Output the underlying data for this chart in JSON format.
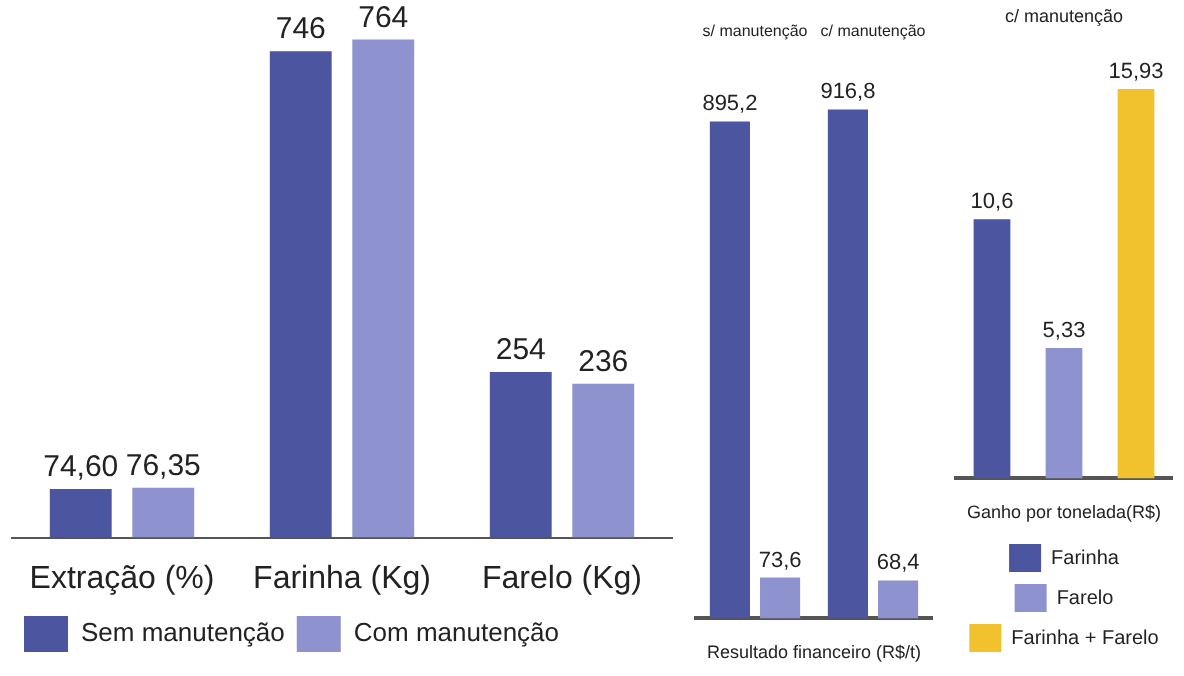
{
  "chart_data": [
    {
      "type": "bar",
      "categories": [
        "Extração (%)",
        "Farinha (Kg)",
        "Farelo (Kg)"
      ],
      "series": [
        {
          "name": "Sem manutenção",
          "color": "#4b55a0",
          "values": [
            74.6,
            746,
            254
          ],
          "value_labels": [
            "74,60",
            "746",
            "254"
          ]
        },
        {
          "name": "Com manutenção",
          "color": "#8e93cf",
          "values": [
            76.35,
            764,
            236
          ],
          "value_labels": [
            "76,35",
            "764",
            "236"
          ]
        }
      ],
      "legend": "bottom left",
      "grid": false
    },
    {
      "type": "bar",
      "categories": [
        "s/ manutenção",
        "c/ manutenção"
      ],
      "xlabel": "Resultado financeiro (R$/t)",
      "series": [
        {
          "color": "#4b55a0",
          "values": [
            895.2,
            916.8
          ],
          "value_labels": [
            "895,2",
            "916,8"
          ]
        },
        {
          "color": "#8e93cf",
          "values": [
            73.6,
            68.4
          ],
          "value_labels": [
            "73,6",
            "68,4"
          ]
        }
      ],
      "legend": false,
      "grid": false
    },
    {
      "type": "bar",
      "categories": [
        null,
        null,
        null
      ],
      "xlabel": "Ganho por tonelada(R$)",
      "annotations": [
        "c/ manutenção"
      ],
      "stacked": true,
      "series": [
        {
          "name": "Farinha",
          "color": "#4b55a0",
          "values": [
            10.6,
            null,
            null
          ],
          "value_labels": [
            "10,6",
            null,
            null
          ]
        },
        {
          "name": "Farelo",
          "color": "#8e93cf",
          "values": [
            null,
            5.33,
            null
          ],
          "value_labels": [
            null,
            "5,33",
            null
          ]
        },
        {
          "name": "Farinha + Farelo",
          "color": "#f2c12e",
          "values": [
            null,
            null,
            15.93
          ],
          "value_labels": [
            null,
            null,
            "15,93"
          ]
        }
      ],
      "legend": "bottom",
      "grid": false
    }
  ]
}
